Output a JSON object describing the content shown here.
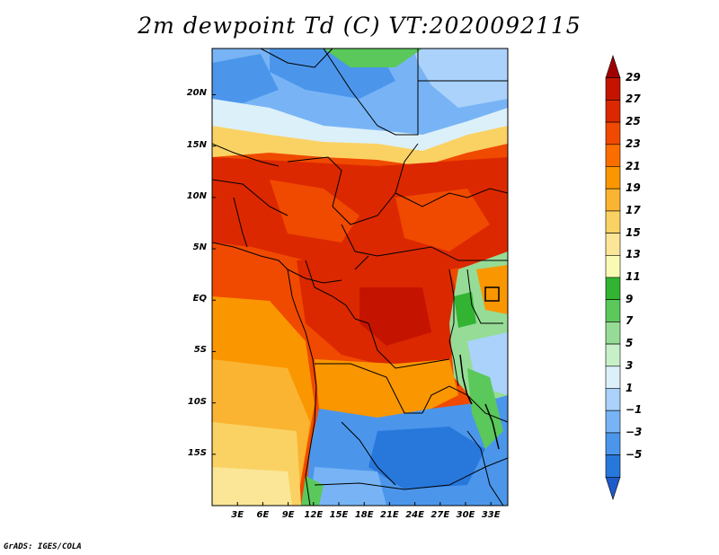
{
  "title": "2m dewpoint Td (C) VT:2020092115",
  "credit": "GrADS: IGES/COLA",
  "map": {
    "lat_labels": [
      "20N",
      "15N",
      "10N",
      "5N",
      "EQ",
      "5S",
      "10S",
      "15S"
    ],
    "lat_values": [
      20,
      15,
      10,
      5,
      0,
      -5,
      -10,
      -15
    ],
    "lon_labels": [
      "3E",
      "6E",
      "9E",
      "12E",
      "15E",
      "18E",
      "21E",
      "24E",
      "27E",
      "30E",
      "33E"
    ],
    "lon_values": [
      3,
      6,
      9,
      12,
      15,
      18,
      21,
      24,
      27,
      30,
      33
    ],
    "lon_range": [
      0,
      35
    ],
    "lat_range": [
      -20,
      24.5
    ]
  },
  "colorbar": {
    "labels": [
      "29",
      "27",
      "25",
      "23",
      "21",
      "19",
      "17",
      "15",
      "13",
      "11",
      "9",
      "7",
      "5",
      "3",
      "1",
      "−1",
      "−3",
      "−5"
    ],
    "colors": [
      "#a00000",
      "#c41400",
      "#dc2800",
      "#f04a00",
      "#fa6e00",
      "#fa9600",
      "#fab432",
      "#fad264",
      "#fae696",
      "#fafab4",
      "#32b432",
      "#5ac85a",
      "#96dc96",
      "#c8f0c8",
      "#dcf0fa",
      "#aad2fa",
      "#78b4f5",
      "#4b96eb",
      "#2878dc",
      "#1e5ac8"
    ]
  }
}
